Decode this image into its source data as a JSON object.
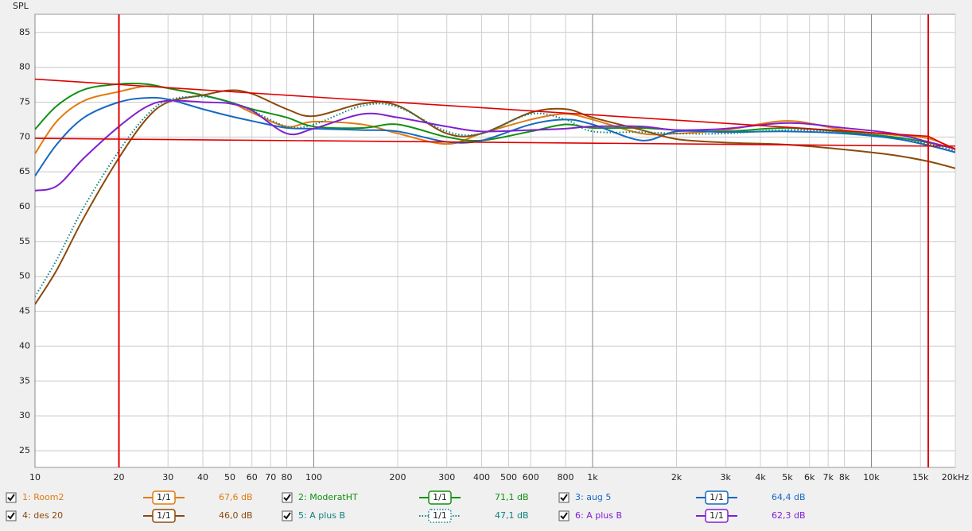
{
  "chart_data": {
    "type": "line",
    "y_label": "SPL",
    "xscale": "log",
    "grid": true,
    "xlim": [
      10,
      20000
    ],
    "ylim": [
      22.6,
      87.6
    ],
    "yticks": [
      25,
      30,
      35,
      40,
      45,
      50,
      55,
      60,
      65,
      70,
      75,
      80,
      85
    ],
    "xticks": [
      10,
      20,
      30,
      40,
      50,
      60,
      70,
      80,
      100,
      200,
      300,
      400,
      500,
      600,
      800,
      {
        "value": 1000,
        "label": "1k"
      },
      {
        "value": 2000,
        "label": "2k"
      },
      {
        "value": 3000,
        "label": "3k"
      },
      {
        "value": 4000,
        "label": "4k"
      },
      {
        "value": 5000,
        "label": "5k"
      },
      {
        "value": 6000,
        "label": "6k"
      },
      {
        "value": 7000,
        "label": "7k"
      },
      {
        "value": 8000,
        "label": "8k"
      },
      {
        "value": 10000,
        "label": "10k"
      },
      {
        "value": 15000,
        "label": "15k"
      },
      {
        "value": 20000,
        "label": "20kHz"
      }
    ],
    "x": [
      10,
      12,
      15,
      20,
      25,
      30,
      40,
      50,
      60,
      80,
      100,
      150,
      200,
      300,
      400,
      600,
      800,
      1000,
      1500,
      2000,
      3000,
      5000,
      8000,
      12000,
      16000,
      20000
    ],
    "series": [
      {
        "name": "1: Room2",
        "color": "#e07b10",
        "smoothing": "1/1",
        "level": "67,6 dB",
        "values": [
          67.6,
          72.3,
          75.2,
          76.5,
          77.3,
          77,
          76,
          75,
          73.5,
          71.5,
          72.2,
          71.8,
          70.5,
          69,
          70.5,
          72.5,
          73.3,
          72.5,
          70.5,
          70.5,
          71,
          72.3,
          71,
          70.3,
          69.8,
          68.3
        ]
      },
      {
        "name": "2: ModeratHT",
        "color": "#109010",
        "smoothing": "1/1",
        "level": "71,1 dB",
        "values": [
          71.1,
          74.5,
          76.8,
          77.6,
          77.6,
          77,
          76,
          75,
          74,
          72.8,
          71.5,
          71.3,
          71.8,
          70,
          69.5,
          70.8,
          71.8,
          71.3,
          71.3,
          71,
          70.8,
          71.3,
          70.7,
          70,
          69.2,
          68.3
        ]
      },
      {
        "name": "3: aug 5",
        "color": "#1868c0",
        "smoothing": "1/1",
        "level": "64,4 dB",
        "values": [
          64.4,
          69,
          72.8,
          75,
          75.6,
          75.4,
          74,
          73,
          72.3,
          71.3,
          71.2,
          71,
          70.8,
          69.3,
          69.5,
          71.8,
          72.5,
          71.8,
          69.5,
          70.8,
          70.7,
          70.8,
          70.5,
          69.8,
          68.8,
          67.8
        ]
      },
      {
        "name": "4: des 20",
        "color": "#8b4a0a",
        "smoothing": "1/1",
        "level": "46,0 dB",
        "values": [
          46,
          51,
          58.5,
          67,
          72.5,
          75,
          76,
          76.7,
          76.2,
          74,
          73,
          74.8,
          74.5,
          70.5,
          70.5,
          73.5,
          74,
          72.8,
          71,
          69.7,
          69.2,
          68.9,
          68.2,
          67.4,
          66.5,
          65.5
        ]
      },
      {
        "name": "5: A plus B",
        "color": "#108080",
        "dash": "dotted",
        "smoothing": "1/1",
        "level": "47,1 dB",
        "values": [
          47.1,
          52.5,
          60,
          68,
          73,
          75.3,
          75.8,
          75,
          73.8,
          71.5,
          71.8,
          74.5,
          74.3,
          70.8,
          70.5,
          73.3,
          72.5,
          70.8,
          70.7,
          70.5,
          70.5,
          71,
          70.7,
          70,
          69,
          68
        ]
      },
      {
        "name": "6: A plus B",
        "color": "#8020d0",
        "smoothing": "1/1",
        "level": "62,3 dB",
        "values": [
          62.3,
          63,
          67,
          71.5,
          74.3,
          75.2,
          75,
          74.8,
          73.8,
          70.5,
          71.2,
          73.3,
          72.8,
          71.5,
          70.8,
          71,
          71.2,
          71.5,
          71.5,
          71,
          71.2,
          72,
          71.3,
          70.5,
          69.3,
          68.3
        ]
      }
    ],
    "target_lines": [
      {
        "color": "#e00000",
        "x": [
          10,
          16000,
          20000
        ],
        "values": [
          78.3,
          70.1,
          68.2
        ]
      },
      {
        "color": "#e00000",
        "x": [
          10,
          16000,
          20000
        ],
        "values": [
          69.8,
          68.7,
          68.7
        ]
      }
    ],
    "marker_color": "#e00000",
    "vertical_markers": [
      20,
      16000
    ]
  }
}
